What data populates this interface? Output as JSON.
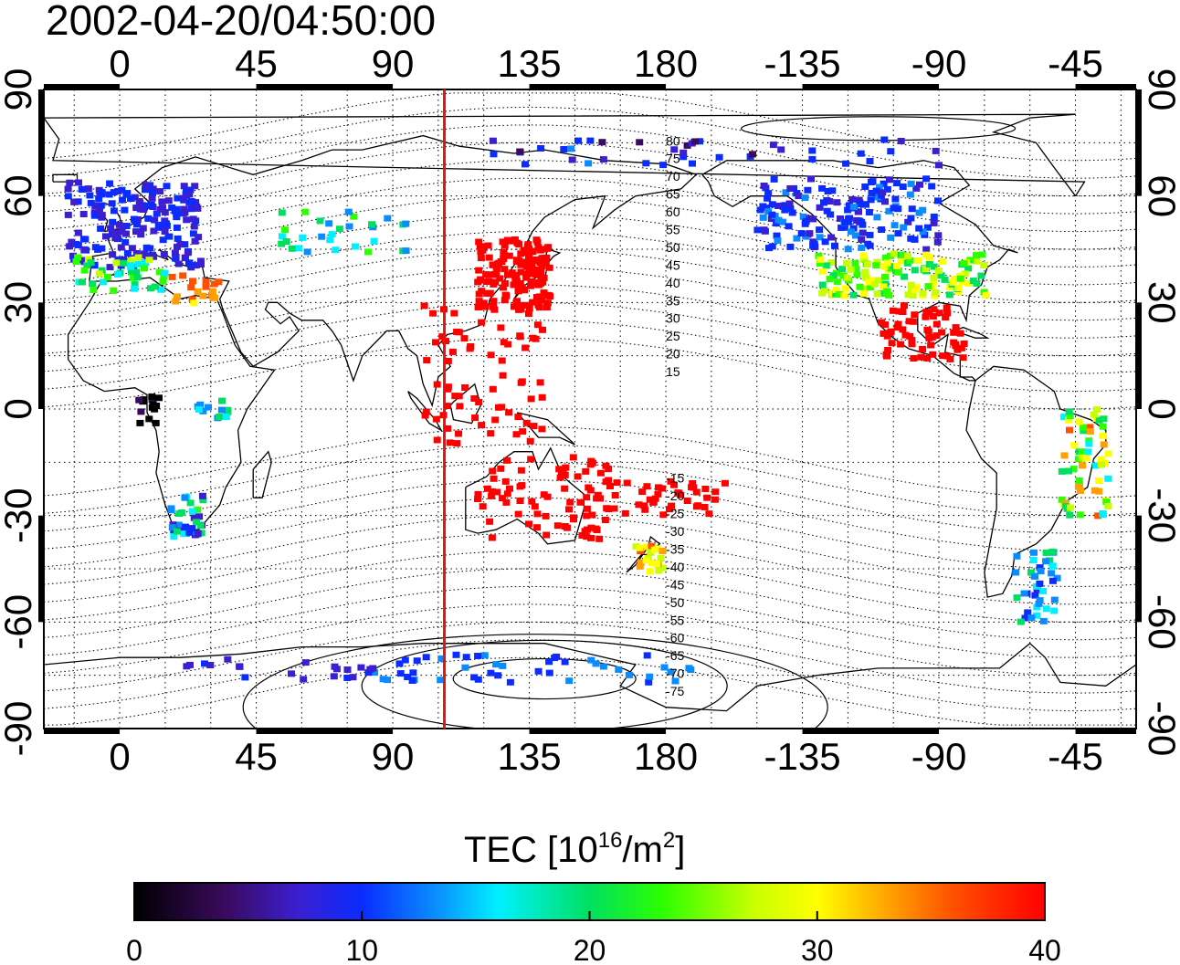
{
  "timestamp": "2002-04-20/04:50:00",
  "map": {
    "lon_start": -25,
    "lon_end": 335,
    "lat_min": -90,
    "lat_max": 90,
    "top_ticks": [
      "0",
      "45",
      "90",
      "135",
      "180",
      "-135",
      "-90",
      "-45"
    ],
    "bottom_ticks": [
      "0",
      "45",
      "90",
      "135",
      "180",
      "-135",
      "-90",
      "-45"
    ],
    "left_ticks": [
      "90",
      "60",
      "30",
      "0",
      "-30",
      "-60",
      "-90"
    ],
    "right_ticks": [
      "90",
      "60",
      "30",
      "0",
      "-30",
      "-60",
      "-90"
    ],
    "tick_values_lon": [
      0,
      45,
      90,
      135,
      180,
      225,
      270,
      315
    ],
    "tick_values_lat": [
      90,
      60,
      30,
      0,
      -30,
      -60,
      -90
    ],
    "subsolar_meridian_lon": 107,
    "meridian_color": "#e8140c",
    "dip_latitude_labels": [
      "80",
      "75",
      "70",
      "65",
      "60",
      "55",
      "50",
      "45",
      "40",
      "35",
      "30",
      "25",
      "20",
      "15",
      "-15",
      "-20",
      "-25",
      "-30",
      "-35",
      "-40",
      "-45",
      "-50",
      "-55",
      "-60",
      "-65",
      "-70",
      "-75"
    ],
    "dip_latitude_values": [
      80,
      75,
      70,
      65,
      60,
      55,
      50,
      45,
      40,
      35,
      30,
      25,
      20,
      15,
      -15,
      -20,
      -25,
      -30,
      -35,
      -40,
      -45,
      -50,
      -55,
      -60,
      -65,
      -70,
      -75
    ]
  },
  "colorbar": {
    "title_main": "TEC  [10",
    "title_exp1": "16",
    "title_mid": "/m",
    "title_exp2": "2",
    "title_end": "]",
    "tick_labels": [
      "0",
      "10",
      "20",
      "30",
      "40"
    ],
    "min": 0,
    "max": 40,
    "colors": [
      "#000000",
      "#3a0a5e",
      "#3b1fd0",
      "#0a2cff",
      "#0a8cff",
      "#00f0ff",
      "#00e060",
      "#2cff00",
      "#c8ff00",
      "#ffff00",
      "#ffa000",
      "#ff5000",
      "#ff0000"
    ]
  }
}
